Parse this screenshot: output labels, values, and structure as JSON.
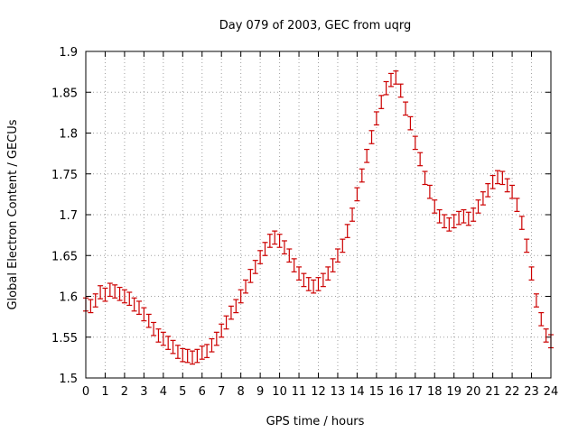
{
  "chart_data": {
    "type": "scatter",
    "title": "Day 079 of 2003, GEC from uqrg",
    "xlabel": "GPS time / hours",
    "ylabel": "Global Electron Content / GECUs",
    "xlim": [
      0,
      24
    ],
    "ylim": [
      1.5,
      1.9
    ],
    "x_ticks": [
      0,
      1,
      2,
      3,
      4,
      5,
      6,
      7,
      8,
      9,
      10,
      11,
      12,
      13,
      14,
      15,
      16,
      17,
      18,
      19,
      20,
      21,
      22,
      23,
      24
    ],
    "x_tick_labels": [
      "0",
      "1",
      "2",
      "3",
      "4",
      "5",
      "6",
      "7",
      "8",
      "9",
      "10",
      "11",
      "12",
      "13",
      "14",
      "15",
      "16",
      "17",
      "18",
      "19",
      "20",
      "21",
      "22",
      "23",
      "24"
    ],
    "y_ticks": [
      1.5,
      1.55,
      1.6,
      1.65,
      1.7,
      1.75,
      1.8,
      1.85,
      1.9
    ],
    "y_tick_labels": [
      "1.5",
      "1.55",
      "1.6",
      "1.65",
      "1.7",
      "1.75",
      "1.8",
      "1.85",
      "1.9"
    ],
    "grid": true,
    "color": "#cc0000",
    "series": [
      {
        "error": 0.008,
        "x": [
          0,
          0.25,
          0.5,
          0.75,
          1,
          1.25,
          1.5,
          1.75,
          2,
          2.25,
          2.5,
          2.75,
          3,
          3.25,
          3.5,
          3.75,
          4,
          4.25,
          4.5,
          4.75,
          5,
          5.25,
          5.5,
          5.75,
          6,
          6.25,
          6.5,
          6.75,
          7,
          7.25,
          7.5,
          7.75,
          8,
          8.25,
          8.5,
          8.75,
          9,
          9.25,
          9.5,
          9.75,
          10,
          10.25,
          10.5,
          10.75,
          11,
          11.25,
          11.5,
          11.75,
          12,
          12.25,
          12.5,
          12.75,
          13,
          13.25,
          13.5,
          13.75,
          14,
          14.25,
          14.5,
          14.75,
          15,
          15.25,
          15.5,
          15.75,
          16,
          16.25,
          16.5,
          16.75,
          17,
          17.25,
          17.5,
          17.75,
          18,
          18.25,
          18.5,
          18.75,
          19,
          19.25,
          19.5,
          19.75,
          20,
          20.25,
          20.5,
          20.75,
          21,
          21.25,
          21.5,
          21.75,
          22,
          22.25,
          22.5,
          22.75,
          23,
          23.25,
          23.5,
          23.75,
          24
        ],
        "y": [
          1.59,
          1.588,
          1.595,
          1.605,
          1.602,
          1.608,
          1.606,
          1.603,
          1.6,
          1.597,
          1.59,
          1.586,
          1.578,
          1.57,
          1.56,
          1.552,
          1.548,
          1.543,
          1.538,
          1.532,
          1.528,
          1.527,
          1.525,
          1.527,
          1.531,
          1.533,
          1.54,
          1.548,
          1.558,
          1.568,
          1.58,
          1.588,
          1.6,
          1.612,
          1.625,
          1.636,
          1.648,
          1.658,
          1.668,
          1.672,
          1.668,
          1.66,
          1.65,
          1.638,
          1.628,
          1.62,
          1.615,
          1.612,
          1.615,
          1.62,
          1.628,
          1.638,
          1.65,
          1.662,
          1.68,
          1.7,
          1.725,
          1.748,
          1.772,
          1.795,
          1.818,
          1.838,
          1.855,
          1.865,
          1.868,
          1.852,
          1.83,
          1.812,
          1.788,
          1.768,
          1.745,
          1.728,
          1.71,
          1.698,
          1.692,
          1.688,
          1.692,
          1.696,
          1.698,
          1.695,
          1.7,
          1.71,
          1.72,
          1.73,
          1.74,
          1.746,
          1.745,
          1.736,
          1.728,
          1.712,
          1.69,
          1.662,
          1.628,
          1.595,
          1.572,
          1.552,
          1.545
        ]
      }
    ]
  }
}
